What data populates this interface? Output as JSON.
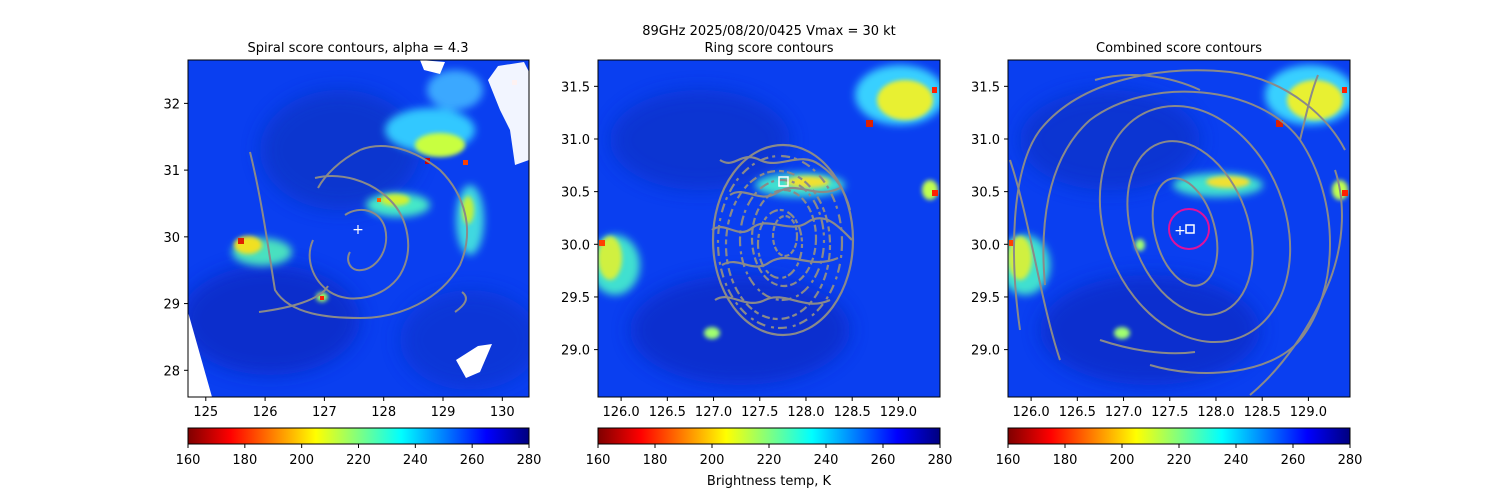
{
  "figure": {
    "suptitle_line1": "89GHz  2025/08/20/0425    Vmax = 30 kt",
    "colorbar_label": "Brightness temp, K",
    "colormap": [
      "#7f0000",
      "#ff0000",
      "#ff8000",
      "#ffff00",
      "#80ff80",
      "#00ffff",
      "#0080ff",
      "#0000ff",
      "#00007f"
    ]
  },
  "chart_data": [
    {
      "type": "heatmap",
      "title": "Spiral score contours, alpha =  4.3",
      "xlabel": "",
      "ylabel": "",
      "xlim": [
        124.7,
        130.45
      ],
      "ylim": [
        27.6,
        32.65
      ],
      "x_ticks": [
        "125",
        "126",
        "127",
        "128",
        "129",
        "130"
      ],
      "y_ticks": [
        "28",
        "29",
        "30",
        "31",
        "32"
      ],
      "colorbar": {
        "range": [
          160,
          280
        ],
        "ticks": [
          "160",
          "180",
          "200",
          "220",
          "240",
          "260",
          "280"
        ]
      },
      "center_marker": {
        "symbol": "+",
        "x": 127.55,
        "y": 30.12
      },
      "grid": false
    },
    {
      "type": "heatmap",
      "title": "Ring score contours",
      "xlabel": "",
      "ylabel": "",
      "xlim": [
        125.75,
        129.45
      ],
      "ylim": [
        28.55,
        31.75
      ],
      "x_ticks": [
        "126.0",
        "126.5",
        "127.0",
        "127.5",
        "128.0",
        "128.5",
        "129.0"
      ],
      "y_ticks": [
        "29.0",
        "29.5",
        "30.0",
        "30.5",
        "31.0",
        "31.5"
      ],
      "colorbar": {
        "range": [
          160,
          280
        ],
        "ticks": [
          "160",
          "180",
          "200",
          "220",
          "240",
          "260",
          "280"
        ]
      },
      "ring_center": {
        "symbol": "square",
        "x": 127.75,
        "y": 30.58
      },
      "grid": false
    },
    {
      "type": "heatmap",
      "title": "Combined score contours",
      "xlabel": "",
      "ylabel": "",
      "xlim": [
        125.75,
        129.45
      ],
      "ylim": [
        28.55,
        31.75
      ],
      "x_ticks": [
        "126.0",
        "126.5",
        "127.0",
        "127.5",
        "128.0",
        "128.5",
        "129.0"
      ],
      "y_ticks": [
        "29.0",
        "29.5",
        "30.0",
        "30.5",
        "31.0",
        "31.5"
      ],
      "colorbar": {
        "range": [
          160,
          280
        ],
        "ticks": [
          "160",
          "180",
          "200",
          "220",
          "240",
          "260",
          "280"
        ]
      },
      "center_marker": {
        "symbol": "+",
        "x": 127.58,
        "y": 30.13
      },
      "combined_center": {
        "symbol": "square",
        "x": 127.7,
        "y": 30.14
      },
      "ring": {
        "color": "#e0119c",
        "x": 127.7,
        "y": 30.13
      },
      "grid": false
    }
  ]
}
